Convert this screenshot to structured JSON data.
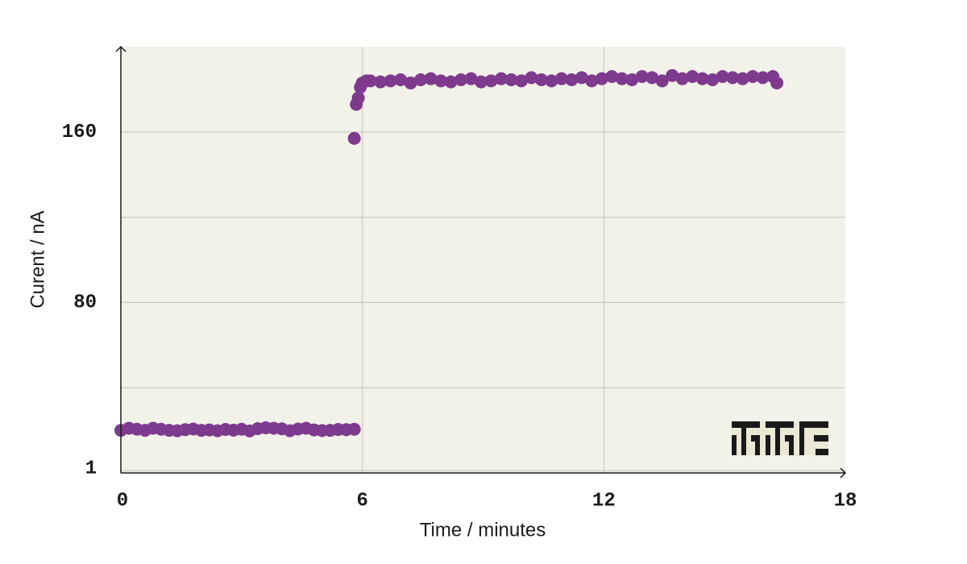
{
  "chart_data": {
    "type": "scatter",
    "x_label": "Time / minutes",
    "y_label": "Curent / nA",
    "color": "#7e3a8c",
    "xlim": [
      0,
      18
    ],
    "xticks": [
      0,
      6,
      12,
      18
    ],
    "ylim": [
      0,
      200
    ],
    "yticks": [
      1,
      {
        "value": 40,
        "label": null
      },
      80,
      {
        "value": 120,
        "label": null
      },
      160
    ],
    "grid": true,
    "x": [
      0,
      0.2,
      0.4,
      0.6,
      0.8,
      1,
      1.2,
      1.4,
      1.6,
      1.8,
      2,
      2.2,
      2.4,
      2.6,
      2.8,
      3,
      3.2,
      3.4,
      3.6,
      3.8,
      4,
      4.2,
      4.4,
      4.6,
      4.8,
      5,
      5.2,
      5.4,
      5.6,
      5.8,
      5.8,
      5.85,
      5.9,
      5.95,
      6.0,
      6.1,
      6.2,
      6.45,
      6.7,
      6.95,
      7.2,
      7.45,
      7.7,
      7.95,
      8.2,
      8.45,
      8.7,
      8.95,
      9.2,
      9.45,
      9.7,
      9.95,
      10.2,
      10.45,
      10.7,
      10.95,
      11.2,
      11.45,
      11.7,
      11.95,
      12.2,
      12.45,
      12.7,
      12.95,
      13.2,
      13.45,
      13.7,
      13.95,
      14.2,
      14.45,
      14.7,
      14.95,
      15.2,
      15.45,
      15.7,
      15.95,
      16.2,
      16.3
    ],
    "values": [
      20,
      21,
      20.5,
      20,
      21,
      20.5,
      20,
      19.8,
      20.3,
      20.6,
      20,
      20.2,
      19.8,
      20.4,
      20.1,
      20.5,
      19.7,
      20.8,
      21.2,
      21,
      20.7,
      19.8,
      20.6,
      21,
      20.2,
      19.9,
      20,
      20.4,
      20.3,
      20.5,
      157,
      173,
      176,
      181,
      183,
      184,
      184,
      183.5,
      184,
      184.5,
      183,
      184.5,
      185,
      184,
      183.5,
      184.5,
      185,
      183.5,
      184,
      185,
      184.5,
      184,
      185.5,
      184.5,
      184,
      185,
      184.5,
      185.5,
      184,
      185,
      186,
      185,
      184.5,
      186,
      185.5,
      184,
      186.5,
      185,
      186,
      185,
      184.5,
      186,
      185.5,
      185,
      186,
      185.5,
      186,
      183
    ]
  }
}
